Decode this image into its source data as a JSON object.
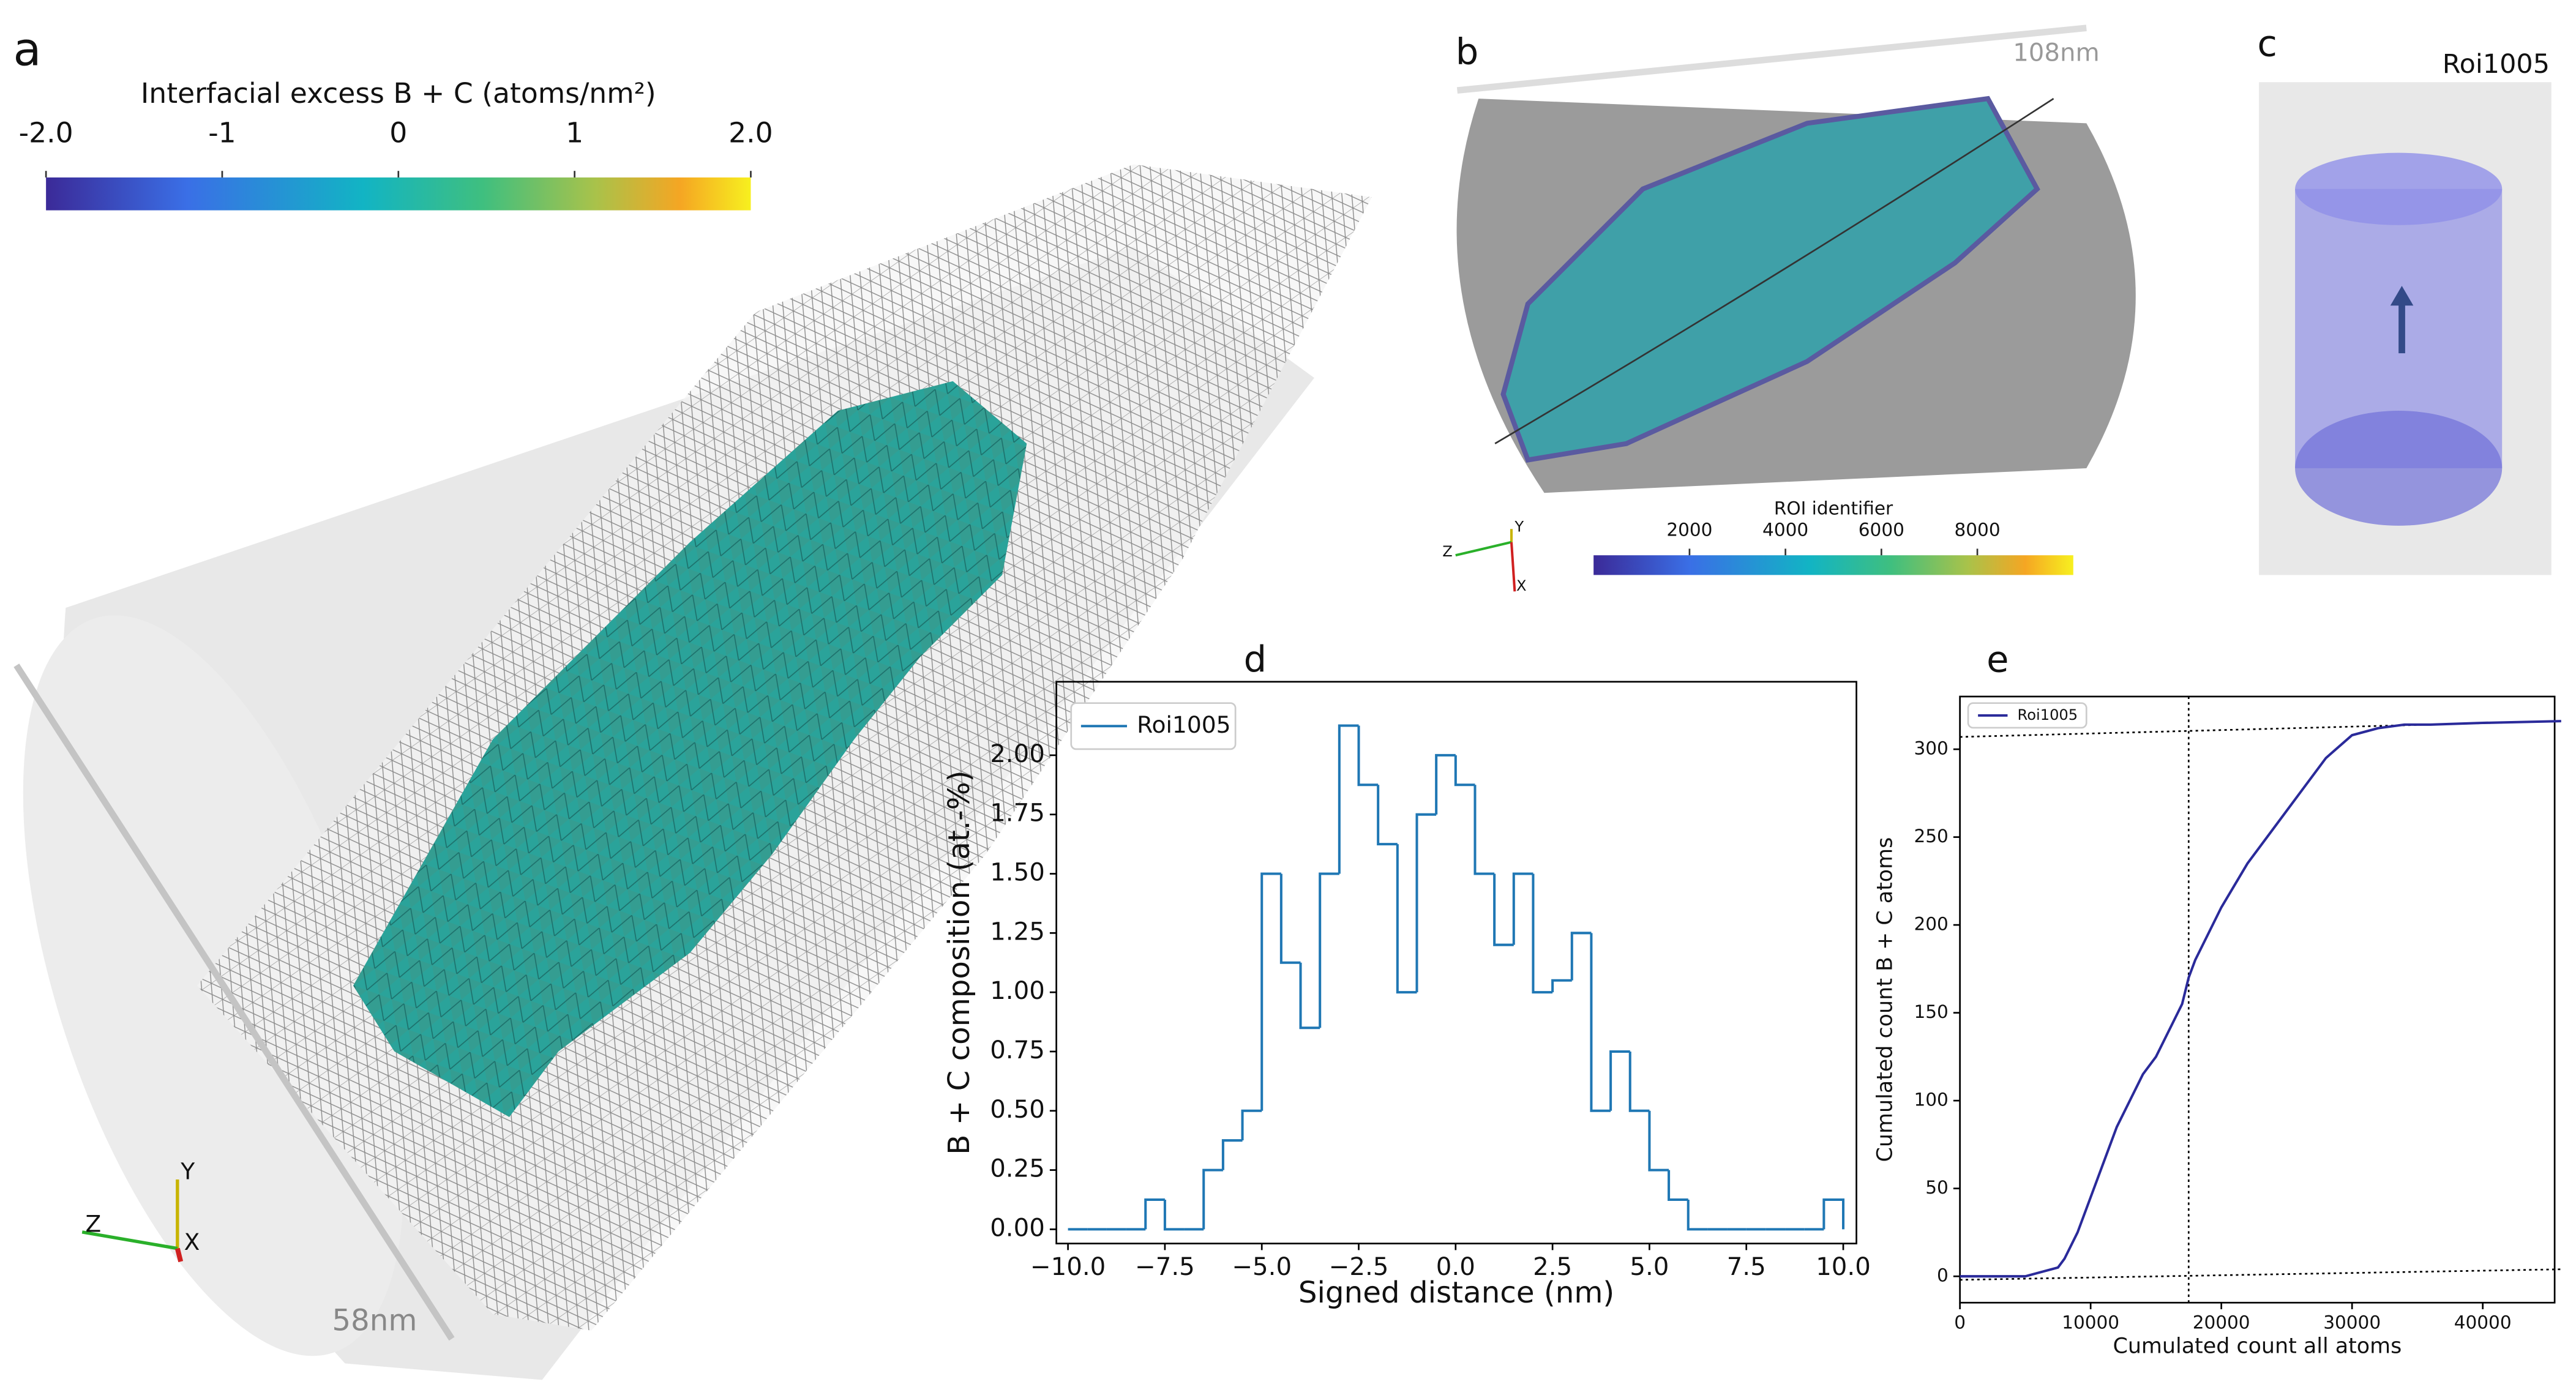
{
  "panel_labels": [
    "a",
    "b",
    "c",
    "d",
    "e"
  ],
  "scale_bars": [
    "108nm",
    "58nm"
  ],
  "triad_labels": [
    "X",
    "Y",
    "Z"
  ],
  "roi_title": "Roi1005",
  "colorbars": [
    {
      "label": "Interfacial excess B + C (atoms/nm²)",
      "lim": [
        -2,
        2
      ],
      "ticks": [
        {
          "value": -2,
          "label": "-2.0"
        },
        -1,
        0,
        1,
        {
          "value": 2,
          "label": "2.0"
        }
      ]
    },
    {
      "label": "ROI identifier",
      "lim": [
        0,
        10000
      ],
      "ticks": [
        2000,
        4000,
        6000,
        8000
      ]
    }
  ],
  "chart_data": [
    {
      "type": "histogram",
      "xlabel": "Signed distance (nm)",
      "ylabel": "B + C composition (at.-%)",
      "bins": [
        -10,
        -9.5,
        -9,
        -8.5,
        -8,
        -7.5,
        -7,
        -6.5,
        -6,
        -5.5,
        -5,
        -4.5,
        -4,
        -3.5,
        -3,
        -2.5,
        -2,
        -1.5,
        -1,
        -0.5,
        0,
        0.5,
        1,
        1.5,
        2,
        2.5,
        3,
        3.5,
        4,
        4.5,
        5,
        5.5,
        6,
        6.5,
        7,
        7.5,
        8,
        8.5,
        9,
        9.5,
        10
      ],
      "series": [
        {
          "name": "Roi1005",
          "color": "#1f77b4",
          "values": [
            0,
            0,
            0,
            0,
            0.125,
            0,
            0,
            0.25,
            0.375,
            0.5,
            1.5,
            1.125,
            0.85,
            1.5,
            2.125,
            1.875,
            1.625,
            1.0,
            1.75,
            2.0,
            1.875,
            1.5,
            1.2,
            1.5,
            1.0,
            1.05,
            1.25,
            0.5,
            0.75,
            0.5,
            0.25,
            0.125,
            0,
            0,
            0,
            0,
            0,
            0,
            0,
            0.125
          ]
        }
      ],
      "xlim": [
        -10.3,
        10.34
      ],
      "ylim": [
        -0.06,
        2.31
      ],
      "xticks": [
        {
          "value": -10,
          "label": "−10.0"
        },
        {
          "value": -7.5,
          "label": "−7.5"
        },
        {
          "value": -5,
          "label": "−5.0"
        },
        {
          "value": -2.5,
          "label": "−2.5"
        },
        {
          "value": 0,
          "label": "0.0"
        },
        {
          "value": 2.5,
          "label": "2.5"
        },
        {
          "value": 5,
          "label": "5.0"
        },
        {
          "value": 7.5,
          "label": "7.5"
        },
        {
          "value": 10,
          "label": "10.0"
        }
      ],
      "yticks": [
        {
          "value": 0,
          "label": "0.00"
        },
        {
          "value": 0.25,
          "label": "0.25"
        },
        {
          "value": 0.5,
          "label": "0.50"
        },
        {
          "value": 0.75,
          "label": "0.75"
        },
        {
          "value": 1,
          "label": "1.00"
        },
        {
          "value": 1.25,
          "label": "1.25"
        },
        {
          "value": 1.5,
          "label": "1.50"
        },
        {
          "value": 1.75,
          "label": "1.75"
        },
        {
          "value": 2,
          "label": "2.00"
        }
      ],
      "legend": "upper left"
    },
    {
      "type": "line",
      "xlabel": "Cumulated count all atoms",
      "ylabel": "Cumulated count B + C atoms",
      "x": [
        0,
        5000,
        6000,
        7500,
        8000,
        9000,
        10000,
        11000,
        12000,
        13000,
        14000,
        15000,
        16000,
        17000,
        17500,
        18000,
        19000,
        20000,
        22000,
        24000,
        26000,
        28000,
        30000,
        32000,
        34000,
        36000,
        40000,
        46000
      ],
      "series": [
        {
          "name": "Roi1005",
          "color": "#2a2a9a",
          "values": [
            0,
            0,
            2,
            5,
            10,
            25,
            45,
            65,
            85,
            100,
            115,
            125,
            140,
            155,
            170,
            180,
            195,
            210,
            235,
            255,
            275,
            295,
            308,
            312,
            314,
            314,
            315,
            316
          ]
        }
      ],
      "reference_lines": [
        {
          "x": [
            17500,
            17500
          ],
          "y": [
            -15,
            330
          ]
        },
        {
          "x": [
            0,
            46000
          ],
          "y": [
            307,
            316
          ]
        },
        {
          "x": [
            0,
            46000
          ],
          "y": [
            -2,
            4
          ]
        }
      ],
      "xlim": [
        0,
        45500
      ],
      "ylim": [
        -15,
        330
      ],
      "xticks": [
        0,
        10000,
        20000,
        30000,
        40000
      ],
      "yticks": [
        0,
        50,
        100,
        150,
        200,
        250,
        300
      ],
      "legend": "upper left"
    }
  ]
}
